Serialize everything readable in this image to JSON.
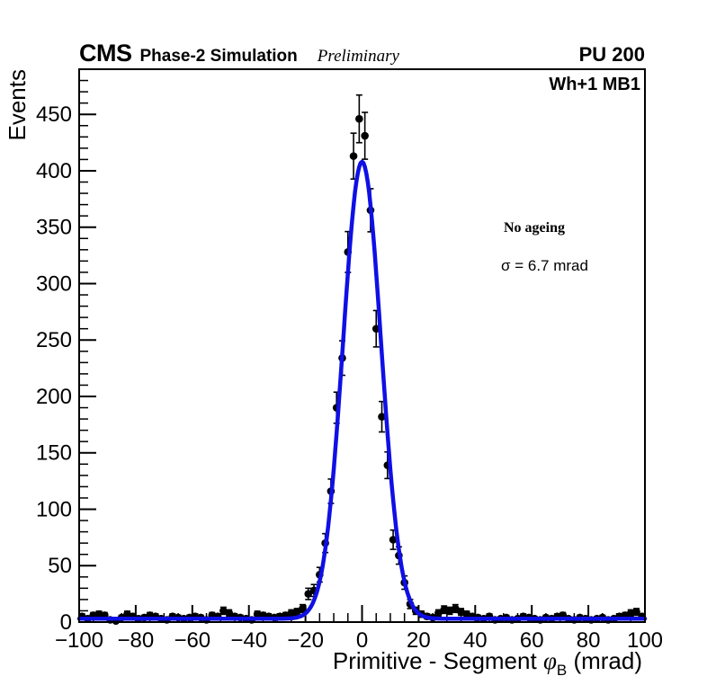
{
  "header": {
    "experiment": "CMS",
    "sim_label": "Phase-2 Simulation",
    "preliminary": "Preliminary",
    "pileup": "PU 200"
  },
  "plot": {
    "region_label": "Wh+1 MB1",
    "annotations": {
      "line1": "No ageing",
      "line2": "σ = 6.7 mrad"
    },
    "y_title": "Events",
    "x_title": {
      "prefix": "Primitive - Segment ",
      "symbol": "φ",
      "subscript": "B",
      "suffix": " (mrad)"
    }
  },
  "chart_data": {
    "type": "scatter",
    "title": "CMS Phase-2 Simulation Preliminary, PU 200, Wh+1 MB1",
    "xlabel": "Primitive - Segment φ_B (mrad)",
    "ylabel": "Events",
    "xlim": [
      -100,
      100
    ],
    "ylim": [
      0,
      490
    ],
    "x_ticks": [
      -100,
      -80,
      -60,
      -40,
      -20,
      0,
      20,
      40,
      60,
      80,
      100
    ],
    "y_ticks": [
      0,
      50,
      100,
      150,
      200,
      250,
      300,
      350,
      400,
      450
    ],
    "x_minor_step": 5,
    "y_minor_step": 10,
    "grid": false,
    "legend": "none",
    "bin_width_mrad": 2,
    "error_model": "sqrt(N)",
    "marker": {
      "shape": "filled-circle",
      "color": "#000000"
    },
    "bin_centers": [
      -99,
      -97,
      -95,
      -93,
      -91,
      -89,
      -87,
      -85,
      -83,
      -81,
      -79,
      -77,
      -75,
      -73,
      -71,
      -69,
      -67,
      -65,
      -63,
      -61,
      -59,
      -57,
      -55,
      -53,
      -51,
      -49,
      -47,
      -45,
      -43,
      -41,
      -39,
      -37,
      -35,
      -33,
      -31,
      -29,
      -27,
      -25,
      -23,
      -21,
      -19,
      -17,
      -15,
      -13,
      -11,
      -9,
      -7,
      -5,
      -3,
      -1,
      1,
      3,
      5,
      7,
      9,
      11,
      13,
      15,
      17,
      19,
      21,
      23,
      25,
      27,
      29,
      31,
      33,
      35,
      37,
      39,
      41,
      43,
      45,
      47,
      49,
      51,
      53,
      55,
      57,
      59,
      61,
      63,
      65,
      67,
      69,
      71,
      73,
      75,
      77,
      79,
      81,
      83,
      85,
      87,
      89,
      91,
      93,
      95,
      97,
      99
    ],
    "counts": [
      5,
      3,
      6,
      7,
      6,
      2,
      1,
      4,
      7,
      5,
      3,
      4,
      6,
      5,
      3,
      2,
      5,
      4,
      3,
      4,
      5,
      4,
      2,
      6,
      5,
      10,
      8,
      5,
      4,
      3,
      2,
      7,
      6,
      5,
      4,
      5,
      6,
      8,
      9,
      12,
      25,
      28,
      42,
      70,
      116,
      190,
      234,
      328,
      413,
      446,
      431,
      365,
      260,
      182,
      139,
      73,
      59,
      35,
      16,
      10,
      7,
      5,
      4,
      8,
      11,
      10,
      12,
      9,
      7,
      5,
      4,
      3,
      5,
      2,
      3,
      4,
      2,
      3,
      5,
      4,
      3,
      2,
      4,
      3,
      5,
      6,
      3,
      2,
      4,
      3,
      2,
      3,
      4,
      2,
      3,
      5,
      6,
      8,
      9,
      5
    ],
    "fit_curve": {
      "type": "gaussian+const",
      "amplitude": 405,
      "mean": 0,
      "sigma_mrad": 6.7,
      "constant": 3,
      "color": "#0f0fe6",
      "sigma_text": "6.7 mrad"
    }
  }
}
